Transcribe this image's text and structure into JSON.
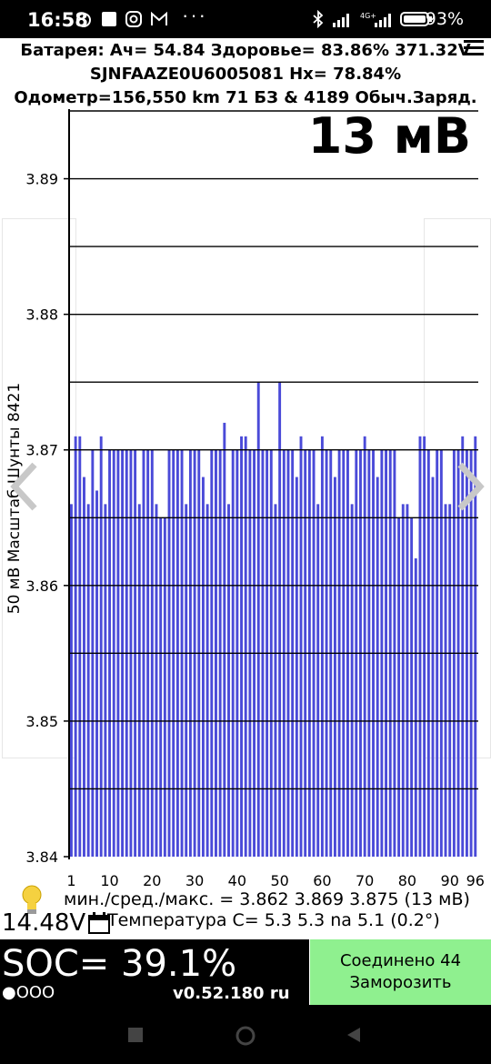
{
  "status_bar": {
    "time": "16:58",
    "right_text": "93%",
    "icons": [
      "alarm-icon",
      "square-icon",
      "instagram-icon",
      "gmail-icon",
      "more-icon",
      "bluetooth-icon",
      "signal-icon",
      "4g-signal-icon",
      "battery-icon"
    ]
  },
  "header": {
    "line1": "Батарея: Ач= 54.84 Здоровье= 83.86% 371.32V",
    "line2": "SJNFAAZE0U6005081   Hx= 78.84%",
    "line3": "Одометр=156,550 km 71 БЗ & 4189 Обыч.Заряд."
  },
  "spread_label": "13 мВ",
  "chart_data": {
    "type": "bar",
    "ylabel": "50 мВ Масштаб  Шунты 8421",
    "ylim": [
      3.84,
      3.895
    ],
    "y_ticks": [
      "3.84",
      "3.85",
      "3.86",
      "3.87",
      "3.88",
      "3.89"
    ],
    "x_ticks": [
      "1",
      "10",
      "20",
      "30",
      "40",
      "50",
      "60",
      "70",
      "80",
      "90",
      "96"
    ],
    "bar_color": "#4a4ad8",
    "values": [
      3.866,
      3.871,
      3.871,
      3.868,
      3.866,
      3.87,
      3.867,
      3.871,
      3.866,
      3.87,
      3.87,
      3.87,
      3.87,
      3.87,
      3.87,
      3.87,
      3.866,
      3.87,
      3.87,
      3.87,
      3.866,
      3.865,
      3.865,
      3.87,
      3.87,
      3.87,
      3.87,
      3.866,
      3.87,
      3.87,
      3.87,
      3.868,
      3.866,
      3.87,
      3.87,
      3.87,
      3.872,
      3.866,
      3.87,
      3.87,
      3.871,
      3.871,
      3.87,
      3.87,
      3.875,
      3.87,
      3.87,
      3.87,
      3.866,
      3.875,
      3.87,
      3.87,
      3.87,
      3.868,
      3.871,
      3.87,
      3.87,
      3.87,
      3.866,
      3.871,
      3.87,
      3.87,
      3.868,
      3.87,
      3.87,
      3.87,
      3.866,
      3.87,
      3.87,
      3.871,
      3.87,
      3.87,
      3.868,
      3.87,
      3.87,
      3.87,
      3.87,
      3.865,
      3.866,
      3.866,
      3.865,
      3.862,
      3.871,
      3.871,
      3.87,
      3.868,
      3.87,
      3.87,
      3.866,
      3.866,
      3.87,
      3.87,
      3.871,
      3.87,
      3.87,
      3.871
    ]
  },
  "stats": "мин./сред./макс. = 3.862 3.869 3.875  (13 мВ)",
  "voltage": "14.48V",
  "temperature": "Температура С= 5.3  5.3  na  5.1  (0.2°)",
  "soc": "SOC= 39.1%",
  "dots": "●OOO",
  "version": "v0.52.180 ru",
  "connect_line1": "Соединено 44",
  "connect_line2": "Заморозить",
  "colors": {
    "connect_bg": "#8ff08f",
    "bar": "#4a4ad8"
  }
}
